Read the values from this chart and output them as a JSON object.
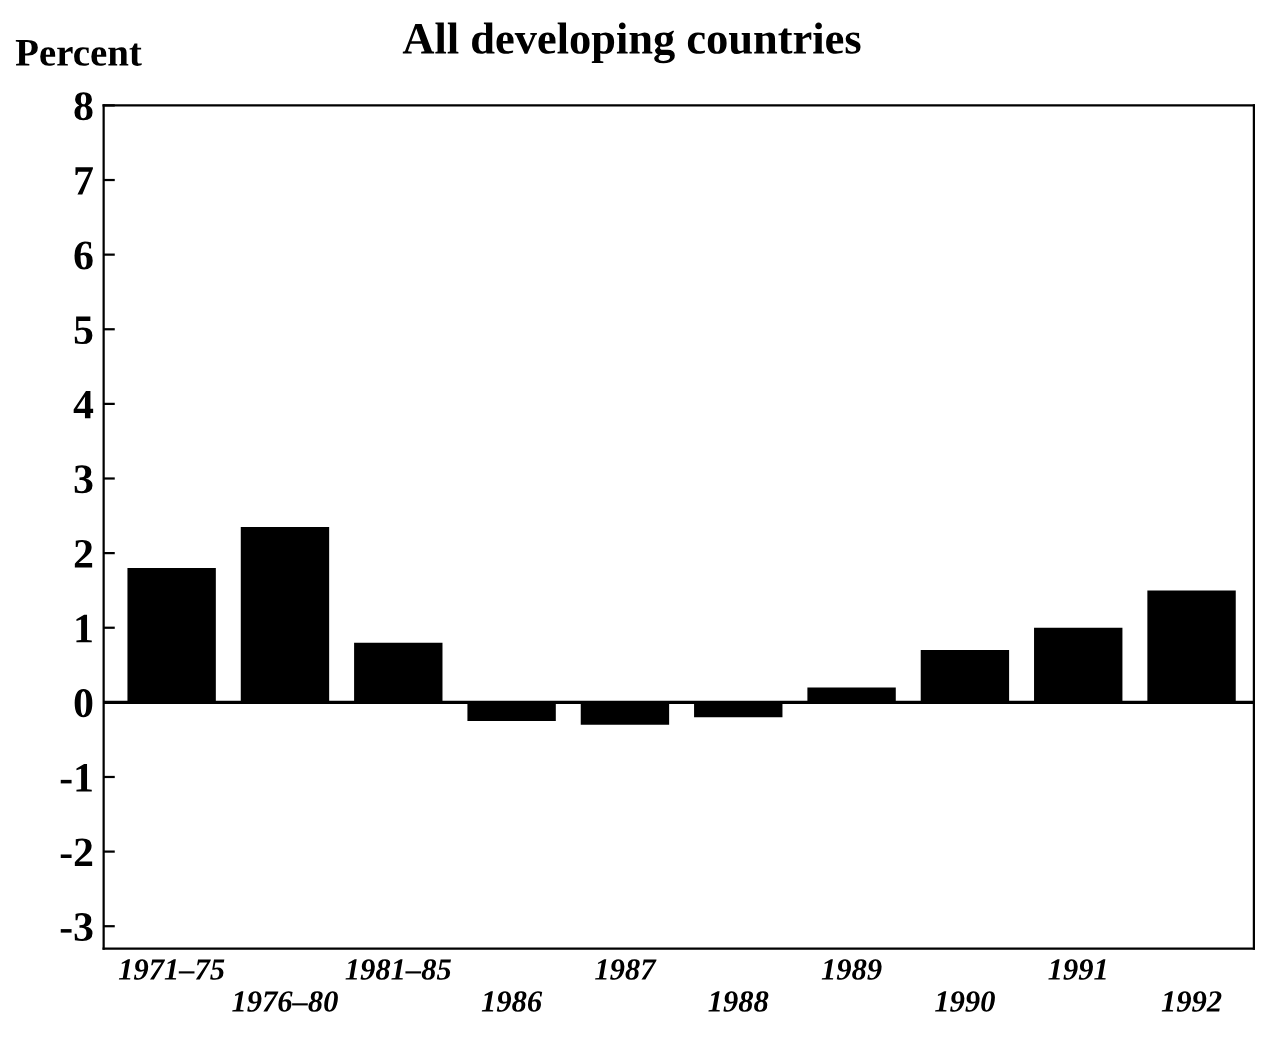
{
  "chart_data": {
    "type": "bar",
    "title": "All developing countries",
    "ylabel": "Percent",
    "categories": [
      "1971–75",
      "1976–80",
      "1981–85",
      "1986",
      "1987",
      "1988",
      "1989",
      "1990",
      "1991",
      "1992"
    ],
    "values": [
      1.8,
      2.35,
      0.8,
      -0.25,
      -0.3,
      -0.2,
      0.2,
      0.7,
      1.0,
      1.5
    ],
    "color": "#000000",
    "ylim": [
      -3.3,
      8
    ],
    "yticks": [
      -3,
      -2,
      -1,
      0,
      1,
      2,
      3,
      4,
      5,
      6,
      7,
      8
    ],
    "ref_lines": [
      {
        "axis": "y",
        "value": 0,
        "color": "#000000"
      }
    ],
    "legend": false
  }
}
